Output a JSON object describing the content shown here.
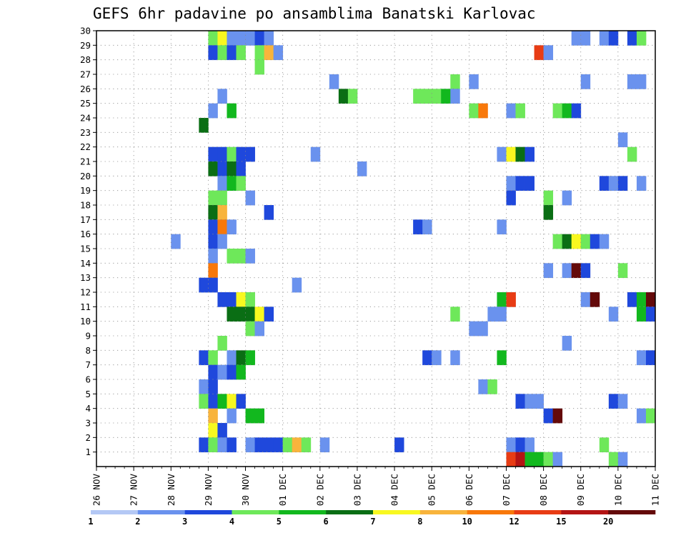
{
  "chart_data": {
    "type": "heatmap",
    "title": "GEFS 6hr padavine po ansamblima Banatski Karlovac",
    "xlabel": "",
    "ylabel": "",
    "x_tick_labels": [
      "26 NOV",
      "27 NOV",
      "28 NOV",
      "29 NOV",
      "30 NOV",
      "01 DEC",
      "02 DEC",
      "03 DEC",
      "04 DEC",
      "05 DEC",
      "06 DEC",
      "07 DEC",
      "08 DEC",
      "09 DEC",
      "10 DEC",
      "11 DEC"
    ],
    "y_tick_labels": [
      "1",
      "2",
      "3",
      "4",
      "5",
      "6",
      "7",
      "8",
      "9",
      "10",
      "11",
      "12",
      "13",
      "14",
      "15",
      "16",
      "17",
      "18",
      "19",
      "20",
      "21",
      "22",
      "23",
      "24",
      "25",
      "26",
      "27",
      "28",
      "29",
      "30"
    ],
    "xlim_steps": [
      0,
      60
    ],
    "ylim_members": [
      0,
      30
    ],
    "grid": true,
    "colorbar": {
      "colors": [
        "#b4c8f5",
        "#6a92ee",
        "#1f48dc",
        "#6ee85a",
        "#12b81e",
        "#0a6e14",
        "#f8f820",
        "#f8b43c",
        "#f8780a",
        "#e83c14",
        "#b41414",
        "#640a0a"
      ],
      "labels": [
        "1",
        "2",
        "3",
        "4",
        "5",
        "6",
        "7",
        "8",
        "10",
        "12",
        "15",
        "20"
      ]
    },
    "cells": [
      [
        30,
        12,
        3
      ],
      [
        30,
        13,
        6
      ],
      [
        30,
        14,
        1
      ],
      [
        30,
        15,
        1
      ],
      [
        30,
        16,
        1
      ],
      [
        30,
        17,
        2
      ],
      [
        30,
        18,
        1
      ],
      [
        30,
        51,
        1
      ],
      [
        30,
        52,
        1
      ],
      [
        30,
        54,
        1
      ],
      [
        30,
        55,
        2
      ],
      [
        30,
        57,
        2
      ],
      [
        30,
        58,
        3
      ],
      [
        29,
        12,
        2
      ],
      [
        29,
        13,
        3
      ],
      [
        29,
        14,
        2
      ],
      [
        29,
        15,
        3
      ],
      [
        29,
        17,
        3
      ],
      [
        29,
        18,
        7
      ],
      [
        29,
        19,
        1
      ],
      [
        29,
        47,
        9
      ],
      [
        29,
        48,
        1
      ],
      [
        28,
        17,
        3
      ],
      [
        27,
        25,
        1
      ],
      [
        27,
        38,
        3
      ],
      [
        27,
        40,
        1
      ],
      [
        27,
        52,
        1
      ],
      [
        27,
        57,
        1
      ],
      [
        27,
        58,
        1
      ],
      [
        26,
        13,
        1
      ],
      [
        26,
        26,
        5
      ],
      [
        26,
        27,
        3
      ],
      [
        26,
        34,
        3
      ],
      [
        26,
        35,
        3
      ],
      [
        26,
        36,
        3
      ],
      [
        26,
        37,
        4
      ],
      [
        26,
        38,
        1
      ],
      [
        25,
        12,
        1
      ],
      [
        25,
        14,
        4
      ],
      [
        25,
        40,
        3
      ],
      [
        25,
        41,
        8
      ],
      [
        25,
        44,
        1
      ],
      [
        25,
        45,
        3
      ],
      [
        25,
        49,
        3
      ],
      [
        25,
        50,
        4
      ],
      [
        25,
        51,
        2
      ],
      [
        24,
        11,
        5
      ],
      [
        23,
        56,
        1
      ],
      [
        22,
        12,
        2
      ],
      [
        22,
        13,
        2
      ],
      [
        22,
        14,
        3
      ],
      [
        22,
        15,
        2
      ],
      [
        22,
        16,
        2
      ],
      [
        22,
        23,
        1
      ],
      [
        22,
        43,
        1
      ],
      [
        22,
        44,
        6
      ],
      [
        22,
        45,
        5
      ],
      [
        22,
        46,
        2
      ],
      [
        22,
        57,
        3
      ],
      [
        21,
        12,
        5
      ],
      [
        21,
        13,
        2
      ],
      [
        21,
        14,
        5
      ],
      [
        21,
        15,
        2
      ],
      [
        21,
        28,
        1
      ],
      [
        20,
        13,
        1
      ],
      [
        20,
        14,
        4
      ],
      [
        20,
        15,
        3
      ],
      [
        20,
        44,
        1
      ],
      [
        20,
        45,
        2
      ],
      [
        20,
        46,
        2
      ],
      [
        20,
        54,
        2
      ],
      [
        20,
        55,
        1
      ],
      [
        20,
        56,
        2
      ],
      [
        20,
        58,
        1
      ],
      [
        19,
        12,
        3
      ],
      [
        19,
        13,
        3
      ],
      [
        19,
        16,
        1
      ],
      [
        19,
        44,
        2
      ],
      [
        19,
        48,
        3
      ],
      [
        19,
        50,
        1
      ],
      [
        18,
        12,
        5
      ],
      [
        18,
        13,
        7
      ],
      [
        18,
        18,
        2
      ],
      [
        18,
        48,
        5
      ],
      [
        17,
        12,
        2
      ],
      [
        17,
        13,
        8
      ],
      [
        17,
        14,
        1
      ],
      [
        17,
        34,
        2
      ],
      [
        17,
        35,
        1
      ],
      [
        17,
        43,
        1
      ],
      [
        16,
        8,
        1
      ],
      [
        16,
        12,
        2
      ],
      [
        16,
        13,
        1
      ],
      [
        16,
        49,
        3
      ],
      [
        16,
        50,
        5
      ],
      [
        16,
        51,
        6
      ],
      [
        16,
        52,
        3
      ],
      [
        16,
        53,
        2
      ],
      [
        16,
        54,
        1
      ],
      [
        15,
        12,
        1
      ],
      [
        15,
        14,
        3
      ],
      [
        15,
        15,
        3
      ],
      [
        15,
        16,
        1
      ],
      [
        14,
        12,
        8
      ],
      [
        14,
        48,
        1
      ],
      [
        14,
        50,
        1
      ],
      [
        14,
        51,
        11
      ],
      [
        14,
        52,
        2
      ],
      [
        14,
        56,
        3
      ],
      [
        13,
        11,
        2
      ],
      [
        13,
        12,
        2
      ],
      [
        13,
        21,
        1
      ],
      [
        12,
        13,
        2
      ],
      [
        12,
        14,
        2
      ],
      [
        12,
        15,
        6
      ],
      [
        12,
        16,
        3
      ],
      [
        12,
        43,
        4
      ],
      [
        12,
        44,
        9
      ],
      [
        12,
        52,
        1
      ],
      [
        12,
        53,
        11
      ],
      [
        12,
        57,
        2
      ],
      [
        12,
        58,
        4
      ],
      [
        12,
        59,
        11
      ],
      [
        11,
        14,
        5
      ],
      [
        11,
        15,
        5
      ],
      [
        11,
        16,
        5
      ],
      [
        11,
        17,
        6
      ],
      [
        11,
        18,
        2
      ],
      [
        11,
        38,
        3
      ],
      [
        11,
        42,
        1
      ],
      [
        11,
        43,
        1
      ],
      [
        11,
        55,
        1
      ],
      [
        11,
        58,
        4
      ],
      [
        11,
        59,
        2
      ],
      [
        10,
        16,
        3
      ],
      [
        10,
        17,
        1
      ],
      [
        10,
        40,
        1
      ],
      [
        10,
        41,
        1
      ],
      [
        9,
        13,
        3
      ],
      [
        9,
        50,
        1
      ],
      [
        8,
        11,
        2
      ],
      [
        8,
        12,
        3
      ],
      [
        8,
        14,
        1
      ],
      [
        8,
        15,
        5
      ],
      [
        8,
        16,
        4
      ],
      [
        8,
        35,
        2
      ],
      [
        8,
        36,
        1
      ],
      [
        8,
        38,
        1
      ],
      [
        8,
        43,
        4
      ],
      [
        8,
        58,
        1
      ],
      [
        8,
        59,
        2
      ],
      [
        7,
        12,
        2
      ],
      [
        7,
        13,
        1
      ],
      [
        7,
        14,
        2
      ],
      [
        7,
        15,
        4
      ],
      [
        6,
        11,
        1
      ],
      [
        6,
        12,
        2
      ],
      [
        6,
        41,
        1
      ],
      [
        6,
        42,
        3
      ],
      [
        5,
        11,
        3
      ],
      [
        5,
        12,
        2
      ],
      [
        5,
        13,
        4
      ],
      [
        5,
        14,
        6
      ],
      [
        5,
        15,
        2
      ],
      [
        5,
        45,
        2
      ],
      [
        5,
        46,
        1
      ],
      [
        5,
        47,
        1
      ],
      [
        5,
        55,
        2
      ],
      [
        5,
        56,
        1
      ],
      [
        4,
        12,
        7
      ],
      [
        4,
        14,
        1
      ],
      [
        4,
        16,
        4
      ],
      [
        4,
        17,
        4
      ],
      [
        4,
        48,
        2
      ],
      [
        4,
        49,
        11
      ],
      [
        4,
        58,
        1
      ],
      [
        4,
        59,
        3
      ],
      [
        3,
        12,
        6
      ],
      [
        3,
        13,
        2
      ],
      [
        2,
        11,
        2
      ],
      [
        2,
        12,
        3
      ],
      [
        2,
        13,
        1
      ],
      [
        2,
        14,
        2
      ],
      [
        2,
        16,
        1
      ],
      [
        2,
        17,
        2
      ],
      [
        2,
        18,
        2
      ],
      [
        2,
        19,
        2
      ],
      [
        2,
        20,
        3
      ],
      [
        2,
        21,
        7
      ],
      [
        2,
        22,
        3
      ],
      [
        2,
        24,
        1
      ],
      [
        2,
        32,
        2
      ],
      [
        2,
        44,
        1
      ],
      [
        2,
        45,
        2
      ],
      [
        2,
        46,
        1
      ],
      [
        2,
        54,
        3
      ],
      [
        1,
        44,
        9
      ],
      [
        1,
        45,
        10
      ],
      [
        1,
        46,
        4
      ],
      [
        1,
        47,
        4
      ],
      [
        1,
        48,
        3
      ],
      [
        1,
        49,
        1
      ],
      [
        1,
        55,
        3
      ],
      [
        1,
        56,
        1
      ]
    ]
  }
}
